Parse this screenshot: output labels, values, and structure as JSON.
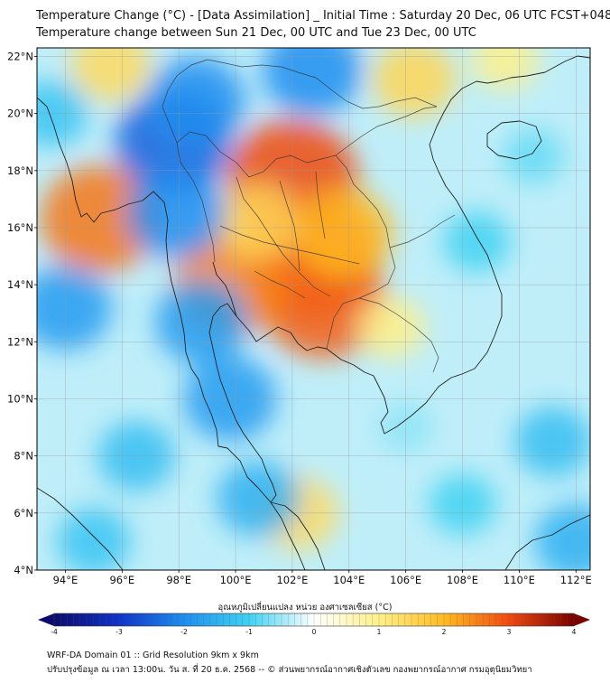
{
  "title_line1": "Temperature Change (°C) - [Data Assimilation] _ Initial Time : Saturday 20 Dec, 06 UTC FCST+048",
  "title_line2": "Temperature change between Sun 21 Dec, 00 UTC and Tue 23 Dec, 00 UTC",
  "lat_ticks": [
    "22°N",
    "20°N",
    "18°N",
    "16°N",
    "14°N",
    "12°N",
    "10°N",
    "8°N",
    "6°N",
    "4°N"
  ],
  "lat_values": [
    22,
    20,
    18,
    16,
    14,
    12,
    10,
    8,
    6,
    4
  ],
  "lon_ticks": [
    "94°E",
    "96°E",
    "98°E",
    "100°E",
    "102°E",
    "104°E",
    "106°E",
    "108°E",
    "110°E",
    "112°E"
  ],
  "lon_values": [
    94,
    96,
    98,
    100,
    102,
    104,
    106,
    108,
    110,
    112
  ],
  "map_extent": {
    "lon_min": 93,
    "lon_max": 112.5,
    "lat_min": 4,
    "lat_max": 22.3
  },
  "colorbar": {
    "title": "อุณหภูมิเปลี่ยนแปลง หน่วย องศาเซลเซียส (°C)",
    "ticks": [
      "-4",
      "-3",
      "-2",
      "-1",
      "0",
      "1",
      "2",
      "3",
      "4"
    ],
    "tick_values": [
      -4,
      -3,
      -2,
      -1,
      0,
      1,
      2,
      3,
      4
    ],
    "range": [
      -4,
      4
    ],
    "colors": [
      "#0c0c6e",
      "#1033c8",
      "#1f8ef0",
      "#3fd2f2",
      "#ffffff",
      "#fff08a",
      "#ffbb22",
      "#f04a10",
      "#7a0000"
    ]
  },
  "anomalies": [
    {
      "lon": 102.0,
      "lat": 17.7,
      "value": 3.0
    },
    {
      "lon": 102.8,
      "lat": 14.9,
      "value": 3.0
    },
    {
      "lon": 103.1,
      "lat": 13.4,
      "value": 2.8
    },
    {
      "lon": 99.9,
      "lat": 14.1,
      "value": 2.5
    },
    {
      "lon": 103.8,
      "lat": 15.8,
      "value": 2.0
    },
    {
      "lon": 100.8,
      "lat": 16.2,
      "value": 1.5
    },
    {
      "lon": 95.2,
      "lat": 16.3,
      "value": 2.6
    },
    {
      "lon": 95.6,
      "lat": 21.7,
      "value": 1.4
    },
    {
      "lon": 106.3,
      "lat": 21.2,
      "value": 1.5
    },
    {
      "lon": 109.5,
      "lat": 21.9,
      "value": 1.0
    },
    {
      "lon": 102.2,
      "lat": 6.0,
      "value": 1.4
    },
    {
      "lon": 105.5,
      "lat": 12.5,
      "value": 1.0
    },
    {
      "lon": 97.8,
      "lat": 19.0,
      "value": -2.5
    },
    {
      "lon": 98.6,
      "lat": 20.4,
      "value": -2.0
    },
    {
      "lon": 97.9,
      "lat": 16.5,
      "value": -2.0
    },
    {
      "lon": 98.8,
      "lat": 12.7,
      "value": -1.8
    },
    {
      "lon": 99.8,
      "lat": 10.0,
      "value": -1.8
    },
    {
      "lon": 100.8,
      "lat": 6.5,
      "value": -1.5
    },
    {
      "lon": 102.7,
      "lat": 21.5,
      "value": -2.0
    },
    {
      "lon": 94.0,
      "lat": 13.2,
      "value": -1.8
    },
    {
      "lon": 93.5,
      "lat": 20.0,
      "value": -1.2
    },
    {
      "lon": 96.5,
      "lat": 8.0,
      "value": -1.3
    },
    {
      "lon": 112.0,
      "lat": 5.0,
      "value": -1.5
    },
    {
      "lon": 111.2,
      "lat": 8.5,
      "value": -1.3
    },
    {
      "lon": 108.5,
      "lat": 15.5,
      "value": -1.0
    },
    {
      "lon": 108.0,
      "lat": 6.3,
      "value": -1.0
    },
    {
      "lon": 106.0,
      "lat": 9.0,
      "value": -0.6
    },
    {
      "lon": 95.0,
      "lat": 5.0,
      "value": -1.2
    },
    {
      "lon": 110.5,
      "lat": 18.5,
      "value": -0.8
    }
  ],
  "footer_line1": "WRF-DA Domain 01 :: Grid Resolution 9km x 9km",
  "footer_line2": "ปรับปรุงข้อมูล ณ เวลา 13:00น. วัน ส. ที่ 20 ธ.ค. 2568 -- © ส่วนพยากรณ์อากาศเชิงตัวเลข กองพยากรณ์อากาศ กรมอุตุนิยมวิทยา"
}
